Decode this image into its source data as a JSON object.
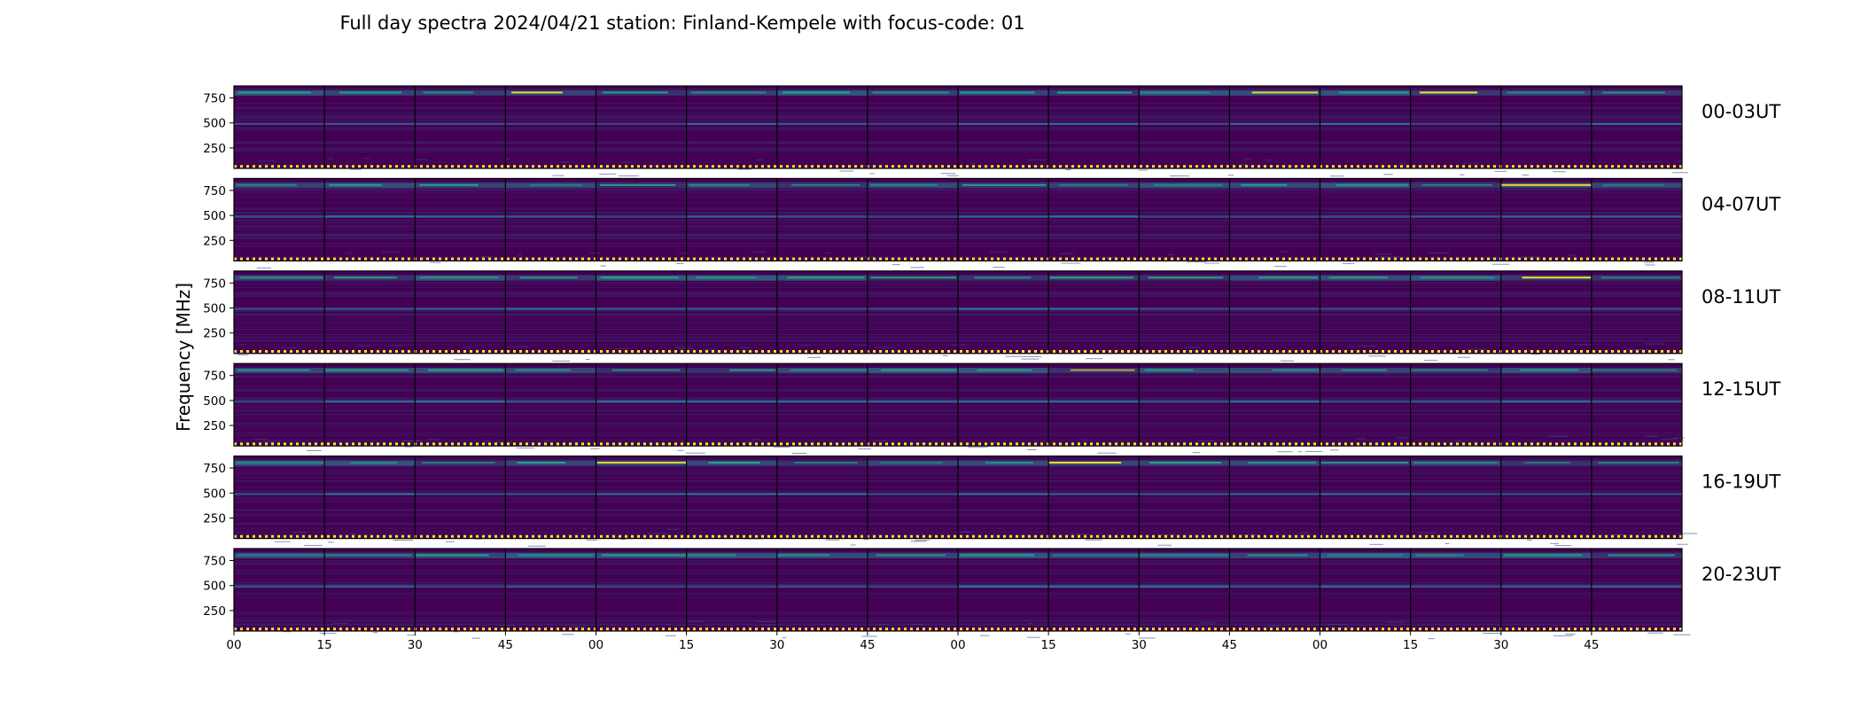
{
  "chart_data": {
    "type": "heatmap",
    "title": "Full day spectra 2024/04/21 station: Finland-Kempele with focus-code: 01",
    "ylabel": "Frequency [MHz]",
    "xlabel": "",
    "ylim": [
      45,
      870
    ],
    "yticks": [
      "750",
      "500",
      "250"
    ],
    "xticks": [
      "00",
      "15",
      "30",
      "45",
      "00",
      "15",
      "30",
      "45",
      "00",
      "15",
      "30",
      "45",
      "00",
      "15",
      "30",
      "45"
    ],
    "colormap": "viridis",
    "colors": {
      "background": "#440154",
      "band": "#2a788e",
      "hot": "#fde725",
      "mid": "#22a884"
    },
    "rows": [
      {
        "label": "00-03UT",
        "upper_band_mhz": 800,
        "mid_band_mhz": 490,
        "low_markers_mhz": 65
      },
      {
        "label": "04-07UT",
        "upper_band_mhz": 800,
        "mid_band_mhz": 490,
        "low_markers_mhz": 65
      },
      {
        "label": "08-11UT",
        "upper_band_mhz": 800,
        "mid_band_mhz": 490,
        "low_markers_mhz": 65
      },
      {
        "label": "12-15UT",
        "upper_band_mhz": 800,
        "mid_band_mhz": 490,
        "low_markers_mhz": 65
      },
      {
        "label": "16-19UT",
        "upper_band_mhz": 800,
        "mid_band_mhz": 490,
        "low_markers_mhz": 65
      },
      {
        "label": "20-23UT",
        "upper_band_mhz": 800,
        "mid_band_mhz": 490,
        "low_markers_mhz": 65
      }
    ]
  }
}
